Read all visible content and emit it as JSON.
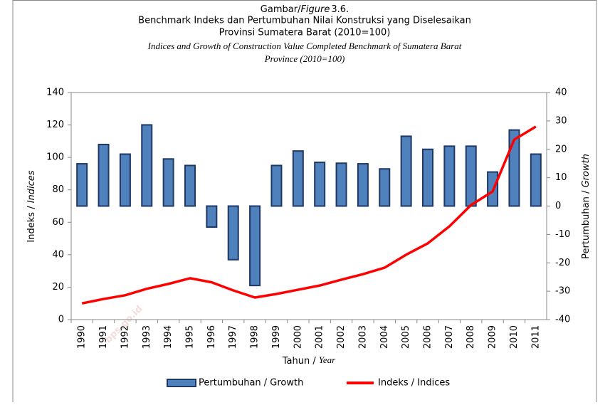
{
  "chart_data": {
    "type": "bar-line",
    "figure_label": [
      "Gambar/",
      "Figure",
      "3.6."
    ],
    "title": [
      "Benchmark Indeks dan Pertumbuhan Nilai Konstruksi yang Diselesaikan",
      "Provinsi Sumatera Barat (2010=100)"
    ],
    "subtitle": [
      "Indices and Growth of Construction Value Completed Benchmark of Sumatera Barat",
      "Province (2010=100)"
    ],
    "x_label": [
      "Tahun / ",
      "Year"
    ],
    "y_label": [
      "Indeks / ",
      "Indices"
    ],
    "y2_label": [
      "Pertumbuhan / ",
      "Growth"
    ],
    "watermark": "bps.go.id",
    "categories": [
      "1990",
      "1991",
      "1992",
      "1993",
      "1994",
      "1995",
      "1996",
      "1997",
      "1998",
      "1999",
      "2000",
      "2001",
      "2002",
      "2003",
      "2004",
      "2005",
      "2006",
      "2007",
      "2008",
      "2009",
      "2010",
      "2011"
    ],
    "series": [
      {
        "name": "Pertumbuhan / Growth",
        "type": "bar",
        "axis": "y2",
        "color": "#4f81bd",
        "values": [
          14.9,
          21.7,
          18.3,
          28.6,
          16.6,
          14.3,
          -7.4,
          -18.9,
          -28.0,
          14.3,
          19.4,
          15.4,
          15.1,
          14.9,
          13.1,
          24.6,
          20.0,
          21.1,
          21.1,
          12.0,
          26.8,
          18.3
        ]
      },
      {
        "name": "Indeks / Indices",
        "type": "line",
        "axis": "y",
        "color": "#ff0000",
        "values": [
          10,
          12.7,
          15,
          19,
          22,
          25.5,
          23,
          18,
          13.6,
          15.8,
          18.4,
          21,
          24.6,
          28,
          32,
          40,
          47,
          57.5,
          70.6,
          79,
          111,
          119
        ]
      }
    ],
    "ylim": [
      0,
      140
    ],
    "yticks": [
      0,
      20,
      40,
      60,
      80,
      100,
      120,
      140
    ],
    "y2lim": [
      -40,
      40
    ],
    "y2ticks": [
      -40,
      -30,
      -20,
      -10,
      0,
      10,
      20,
      30,
      40
    ],
    "legend": "bottom"
  }
}
